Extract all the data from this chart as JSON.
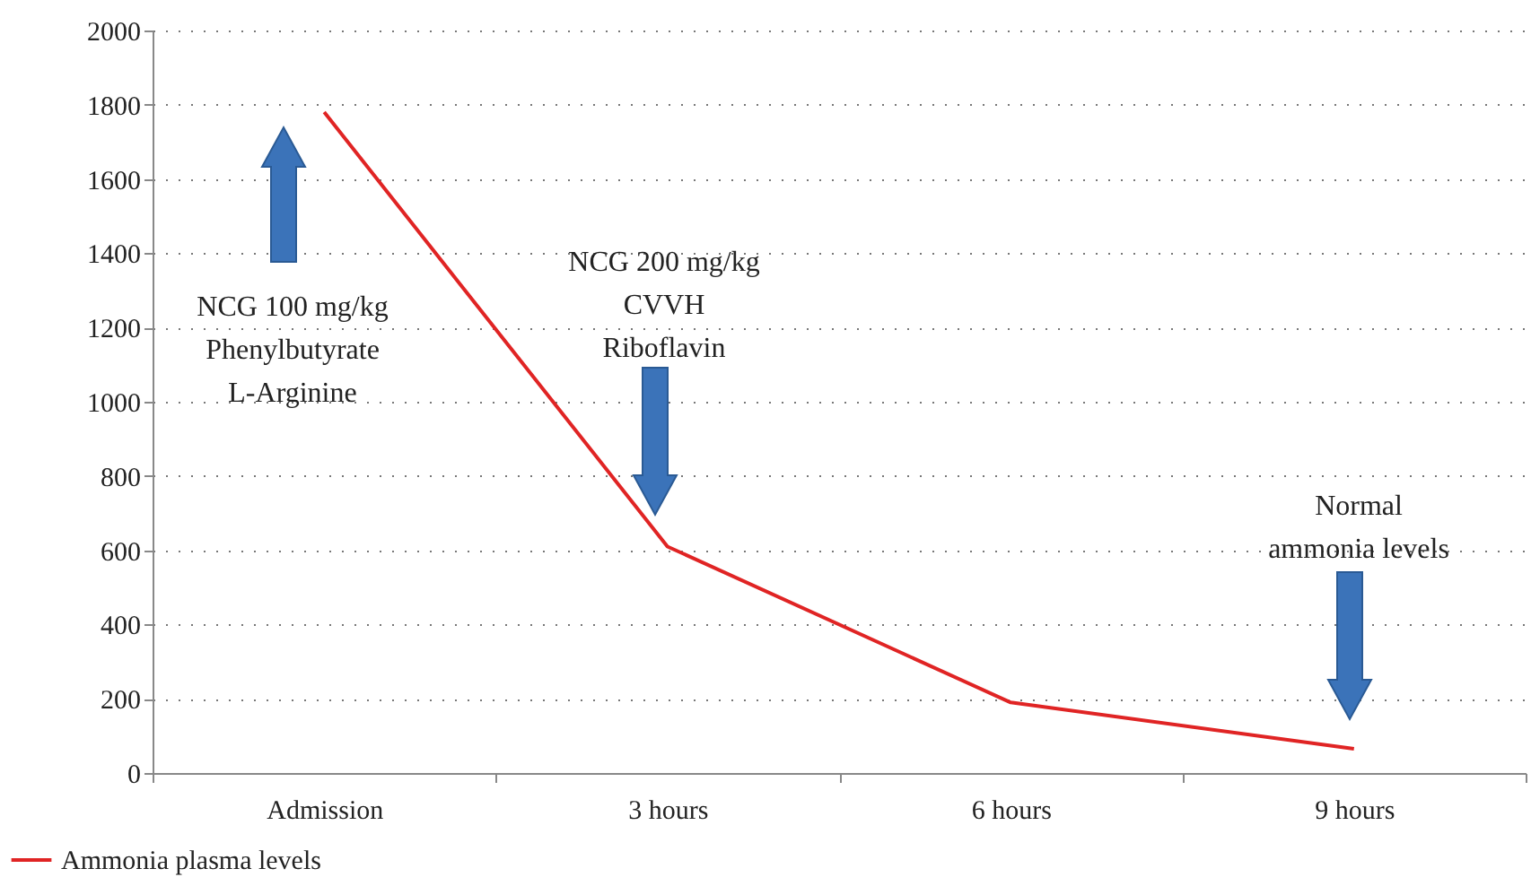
{
  "chart_data": {
    "type": "line",
    "categories": [
      "Admission",
      "3 hours",
      "6 hours",
      "9 hours"
    ],
    "series": [
      {
        "name": "Ammonia plasma levels",
        "color": "#e02424",
        "values": [
          1780,
          610,
          190,
          65
        ]
      }
    ],
    "ylim": [
      0,
      2000
    ],
    "yticks": [
      0,
      200,
      400,
      600,
      800,
      1000,
      1200,
      1400,
      1600,
      1800,
      2000
    ],
    "grid": "y",
    "legend": "bottom left",
    "marker": "none",
    "line_style": "solid",
    "annotations": [
      "NCG 100 mg/kg\nPhenylbutyrate\nL-Arginine",
      "NCG 200 mg/kg\nCVVH\nRiboflavin",
      "Normal\nammonia levels"
    ]
  }
}
